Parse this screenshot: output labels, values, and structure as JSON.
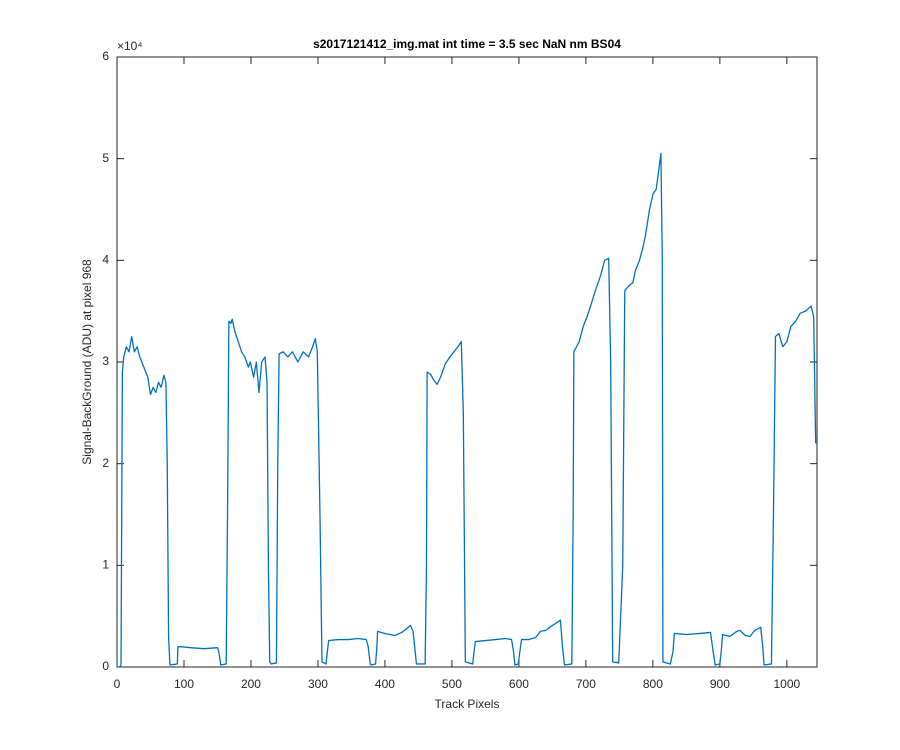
{
  "chart_data": {
    "type": "line",
    "title": "s2017121412_img.mat int time = 3.5 sec  NaN nm BS04",
    "x_label": "Track Pixels",
    "y_label": "Signal-BackGround (ADU) at pixel 968",
    "y_multiplier": "×10⁴",
    "color": "#0072bd",
    "xlim": [
      0,
      1045
    ],
    "ylim": [
      0,
      60000
    ],
    "xticks": [
      0,
      100,
      200,
      300,
      400,
      500,
      600,
      700,
      800,
      900,
      1000
    ],
    "yticks": [
      {
        "value": 0,
        "label": "0"
      },
      {
        "value": 10000,
        "label": "1"
      },
      {
        "value": 20000,
        "label": "2"
      },
      {
        "value": 30000,
        "label": "3"
      },
      {
        "value": 40000,
        "label": "4"
      },
      {
        "value": 50000,
        "label": "5"
      },
      {
        "value": 60000,
        "label": "6"
      }
    ],
    "x": [
      1,
      4,
      6,
      8,
      10,
      14,
      18,
      22,
      26,
      30,
      34,
      40,
      46,
      50,
      54,
      58,
      62,
      66,
      70,
      73,
      75,
      77,
      79,
      90,
      91,
      95,
      110,
      130,
      150,
      152,
      155,
      163,
      165,
      167,
      170,
      172,
      176,
      181,
      186,
      191,
      196,
      199,
      204,
      208,
      212,
      216,
      221,
      224,
      226,
      228,
      230,
      238,
      240,
      242,
      248,
      255,
      262,
      270,
      278,
      286,
      292,
      296,
      299,
      303,
      306,
      312,
      314,
      316,
      330,
      345,
      360,
      372,
      375,
      378,
      380,
      386,
      388,
      389,
      400,
      415,
      425,
      433,
      438,
      442,
      447,
      460,
      462,
      463,
      468,
      473,
      478,
      483,
      490,
      497,
      503,
      509,
      514,
      517,
      520,
      531,
      533,
      535,
      550,
      565,
      580,
      589,
      592,
      594,
      599,
      602,
      604,
      615,
      625,
      632,
      640,
      648,
      655,
      662,
      665,
      668,
      679,
      681,
      682,
      686,
      690,
      696,
      702,
      707,
      714,
      722,
      728,
      734,
      737,
      740,
      749,
      755,
      758,
      764,
      770,
      774,
      780,
      786,
      789,
      795,
      800,
      805,
      809,
      812,
      814,
      815,
      826,
      830,
      832,
      850,
      870,
      886,
      890,
      893,
      900,
      902,
      904,
      915,
      925,
      930,
      938,
      945,
      952,
      961,
      964,
      966,
      977,
      980,
      983,
      988,
      994,
      1000,
      1006,
      1013,
      1020,
      1028,
      1036,
      1040,
      1043
    ],
    "values": [
      0,
      0,
      200,
      29000,
      30500,
      31500,
      31000,
      32500,
      31000,
      31500,
      30500,
      29500,
      28500,
      26800,
      27500,
      27000,
      28000,
      27500,
      28700,
      28000,
      20000,
      3000,
      200,
      300,
      2000,
      2000,
      1900,
      1800,
      1900,
      1500,
      200,
      300,
      15000,
      34000,
      33800,
      34200,
      33000,
      32000,
      31000,
      30500,
      29500,
      30000,
      28500,
      30000,
      27000,
      30000,
      30500,
      28000,
      10000,
      500,
      300,
      400,
      20000,
      30800,
      31000,
      30500,
      31000,
      30000,
      31000,
      30500,
      31500,
      32300,
      31000,
      15000,
      500,
      300,
      1500,
      2600,
      2700,
      2700,
      2800,
      2700,
      2000,
      300,
      200,
      300,
      2000,
      3500,
      3300,
      3100,
      3400,
      3800,
      4100,
      3500,
      300,
      300,
      10000,
      29000,
      28800,
      28200,
      27800,
      28500,
      29800,
      30500,
      31000,
      31500,
      32000,
      25000,
      500,
      300,
      1500,
      2500,
      2600,
      2700,
      2800,
      2700,
      1500,
      200,
      300,
      1800,
      2700,
      2700,
      2900,
      3500,
      3600,
      4000,
      4300,
      4600,
      2000,
      200,
      300,
      15000,
      31000,
      31500,
      32000,
      33500,
      34500,
      35500,
      37000,
      38500,
      40000,
      40200,
      30000,
      500,
      400,
      10000,
      37000,
      37500,
      37800,
      39000,
      40000,
      41500,
      42500,
      45000,
      46500,
      47000,
      49000,
      50500,
      40000,
      500,
      300,
      1500,
      3300,
      3200,
      3300,
      3400,
      1500,
      200,
      300,
      1500,
      3200,
      3000,
      3500,
      3600,
      3100,
      3000,
      3600,
      3900,
      2000,
      200,
      300,
      15000,
      32500,
      32800,
      31500,
      32000,
      33500,
      34000,
      34800,
      35000,
      35500,
      34500,
      22000
    ]
  }
}
